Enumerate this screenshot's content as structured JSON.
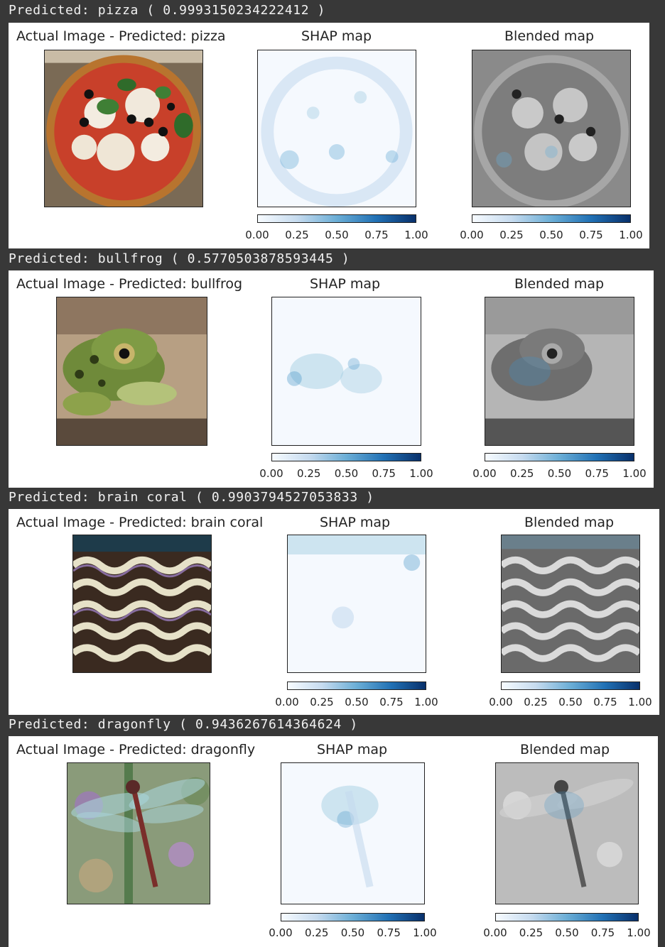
{
  "colors": {
    "background": "#383838",
    "output_text": "#f2f2f2",
    "figure_bg": "#ffffff",
    "colormap": "Blues"
  },
  "colorbar_ticks": [
    "0.00",
    "0.25",
    "0.50",
    "0.75",
    "1.00"
  ],
  "results": [
    {
      "output_line": "Predicted: pizza ( 0.9993150234222412 )",
      "label": "pizza",
      "score": 0.9993150234222412,
      "titles": {
        "actual": "Actual Image - Predicted: pizza",
        "shap": "SHAP map",
        "blended": "Blended map"
      },
      "image_subject": "pizza"
    },
    {
      "output_line": "Predicted: bullfrog ( 0.5770503878593445 )",
      "label": "bullfrog",
      "score": 0.5770503878593445,
      "titles": {
        "actual": "Actual Image - Predicted: bullfrog",
        "shap": "SHAP map",
        "blended": "Blended map"
      },
      "image_subject": "frog"
    },
    {
      "output_line": "Predicted: brain coral ( 0.9903794527053833 )",
      "label": "brain coral",
      "score": 0.9903794527053833,
      "titles": {
        "actual": "Actual Image - Predicted: brain coral",
        "shap": "SHAP map",
        "blended": "Blended map"
      },
      "image_subject": "coral"
    },
    {
      "output_line": "Predicted: dragonfly ( 0.9436267614364624 )",
      "label": "dragonfly",
      "score": 0.9436267614364624,
      "titles": {
        "actual": "Actual Image - Predicted: dragonfly",
        "shap": "SHAP map",
        "blended": "Blended map"
      },
      "image_subject": "dragonfly"
    }
  ]
}
